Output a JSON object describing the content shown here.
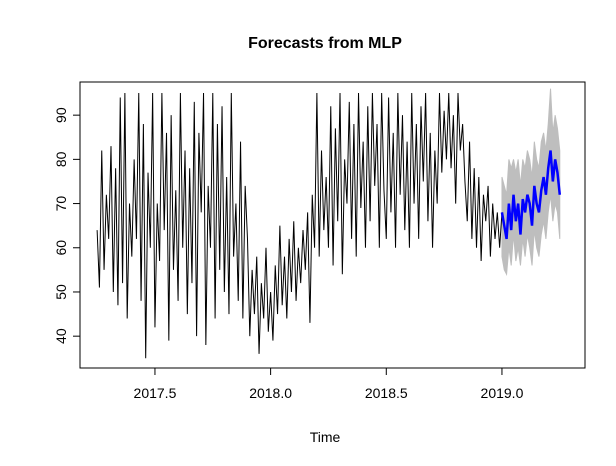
{
  "chart_data": {
    "type": "line",
    "title": "Forecasts from MLP",
    "xlabel": "Time",
    "ylabel": "",
    "xlim": [
      2017.176,
      2019.359
    ],
    "ylim": [
      32.8,
      97.5
    ],
    "xticks": [
      2017.5,
      2018.0,
      2018.5,
      2019.0
    ],
    "xtick_labels": [
      "2017.5",
      "2018.0",
      "2018.5",
      "2019.0"
    ],
    "yticks": [
      40,
      50,
      60,
      70,
      80,
      90
    ],
    "ytick_labels": [
      "40",
      "50",
      "60",
      "70",
      "80",
      "90"
    ],
    "grid": false,
    "colors": {
      "history": "#000000",
      "forecast": "#0000ff",
      "interval": "#bebebe"
    },
    "history": {
      "x_start": 2017.25,
      "x_step": 0.01,
      "values": [
        64,
        51,
        82,
        55,
        72,
        62,
        83,
        50,
        78,
        47,
        94,
        52,
        95,
        44,
        70,
        58,
        80,
        62,
        95,
        48,
        88,
        35,
        77,
        60,
        95,
        42,
        70,
        57,
        95,
        64,
        86,
        39,
        90,
        55,
        73,
        48,
        95,
        60,
        82,
        45,
        78,
        52,
        93,
        40,
        86,
        68,
        95,
        38,
        74,
        60,
        95,
        44,
        88,
        55,
        92,
        50,
        76,
        45,
        95,
        58,
        70,
        48,
        84,
        44,
        74,
        62,
        40,
        55,
        45,
        58,
        36,
        52,
        44,
        60,
        41,
        50,
        39,
        56,
        45,
        65,
        47,
        58,
        44,
        62,
        50,
        66,
        48,
        60,
        52,
        64,
        55,
        68,
        43,
        72,
        60,
        95,
        58,
        82,
        64,
        76,
        60,
        92,
        56,
        87,
        66,
        95,
        54,
        80,
        70,
        93,
        62,
        88,
        58,
        95,
        69,
        84,
        60,
        92,
        66,
        95,
        74,
        88,
        60,
        95,
        73,
        62,
        94,
        68,
        86,
        60,
        95,
        72,
        90,
        64,
        84,
        60,
        95,
        70,
        88,
        62,
        92,
        75,
        95,
        66,
        86,
        60,
        82,
        70,
        95,
        77,
        91,
        80,
        95,
        78,
        90,
        70,
        95,
        82,
        88,
        75,
        66,
        84,
        62,
        78,
        60,
        76,
        57,
        72,
        66,
        74,
        58,
        70,
        62,
        68,
        60,
        68
      ]
    },
    "forecast": {
      "x_start": 2019.0,
      "x_step": 0.01,
      "mean": [
        68,
        65,
        62,
        70,
        64,
        72,
        66,
        70,
        63,
        71,
        68,
        72,
        70,
        65,
        74,
        70,
        68,
        73,
        76,
        72,
        78,
        82,
        75,
        80,
        77,
        72
      ],
      "upper": [
        76,
        74,
        72,
        80,
        78,
        80,
        77,
        80,
        74,
        80,
        78,
        82,
        80,
        76,
        84,
        80,
        78,
        84,
        86,
        82,
        88,
        96,
        86,
        90,
        87,
        82
      ],
      "lower": [
        58,
        55,
        54,
        60,
        56,
        63,
        57,
        60,
        56,
        62,
        58,
        63,
        60,
        56,
        64,
        60,
        58,
        63,
        66,
        62,
        68,
        72,
        66,
        70,
        68,
        62
      ]
    }
  }
}
